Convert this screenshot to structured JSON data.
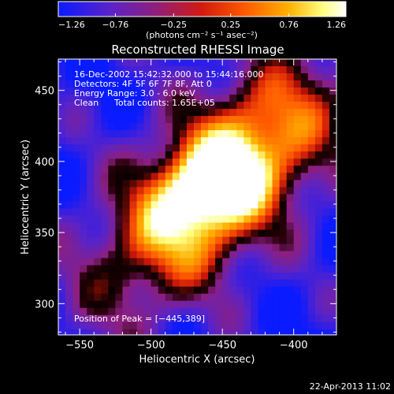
{
  "chart_data": {
    "type": "heatmap",
    "title": "Reconstructed RHESSI Image",
    "xlabel": "Heliocentric X (arcsec)",
    "ylabel": "Heliocentric Y (arcsec)",
    "xlim": [
      -565,
      -370
    ],
    "ylim": [
      278,
      472
    ],
    "x_ticks": [
      -550,
      -500,
      -450,
      -400
    ],
    "y_ticks": [
      300,
      350,
      400,
      450
    ],
    "x_tick_labels": [
      "−550",
      "−500",
      "−450",
      "−400"
    ],
    "y_tick_labels": [
      "300",
      "350",
      "400",
      "450"
    ],
    "colorbar": {
      "min": -1.26,
      "max": 1.26,
      "ticks": [
        -1.26,
        -0.76,
        -0.25,
        0.25,
        0.76,
        1.26
      ],
      "tick_labels": [
        "−1.26",
        "−0.76",
        "−0.25",
        "0.25",
        "0.76",
        "1.26"
      ],
      "unit_label": "(photons cm⁻² s⁻¹ asec⁻²)",
      "colors": [
        "#0a1bff",
        "#5a23c8",
        "#8c1f80",
        "#d21a10",
        "#ff5a00",
        "#ffb000",
        "#ffff80",
        "#ffffff"
      ]
    },
    "peak": [
      -445,
      389
    ],
    "annotations": {
      "time": "16-Dec-2002 15:42:32.000 to 15:44:16.000",
      "detectors": "Detectors: 4F 5F 6F 7F 8F, Att 0",
      "energy": "Energy Range: 3.0 - 6.0 keV",
      "clean": "Clean",
      "counts": "Total counts: 1.65E+05",
      "peak_text": "Position of Peak = [−445,389]"
    },
    "footer_date": "22-Apr-2013 11:02"
  }
}
